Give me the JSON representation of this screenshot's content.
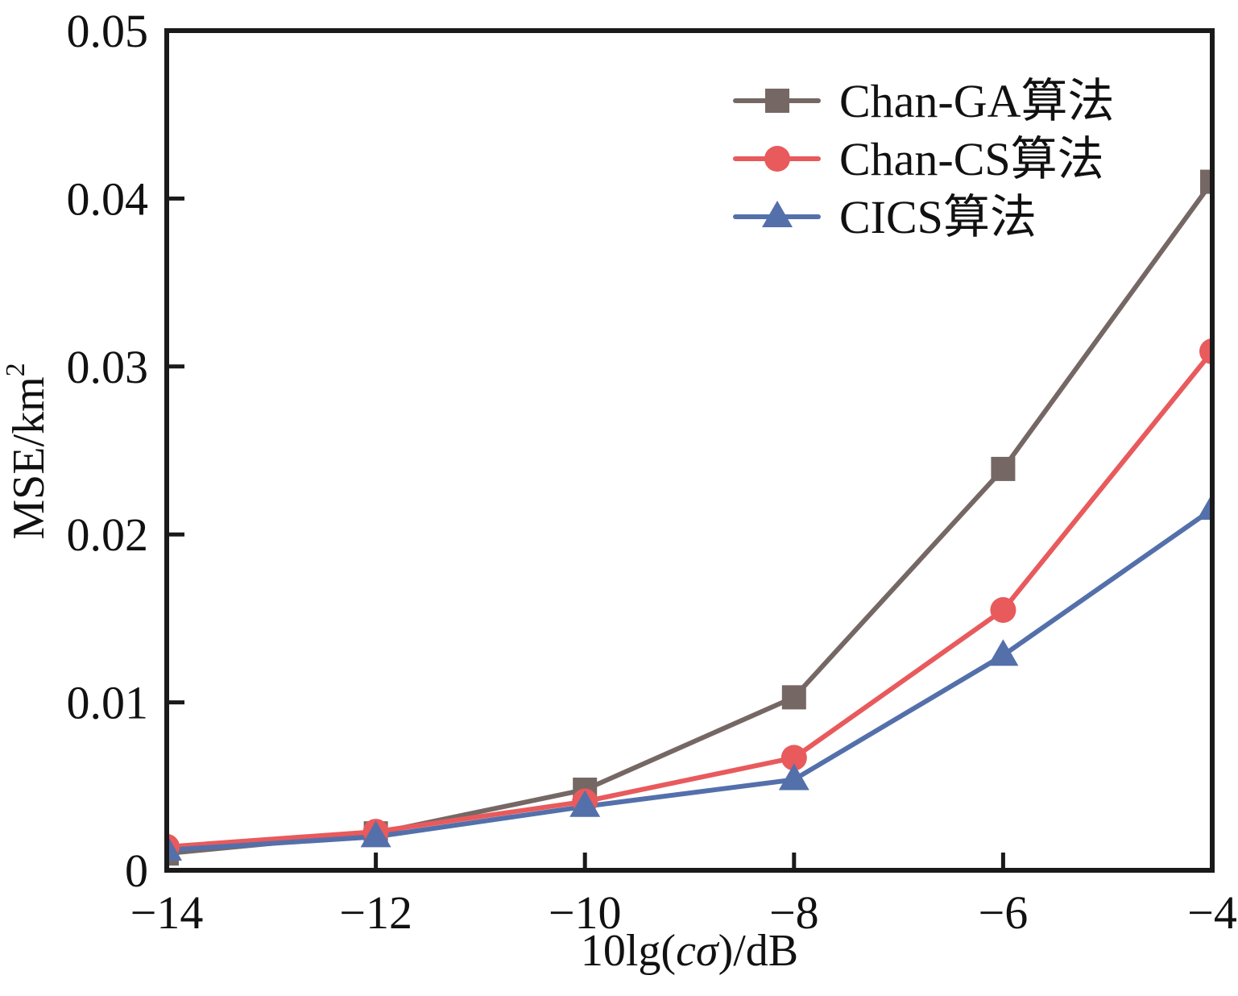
{
  "chart_data": {
    "type": "line",
    "title": "",
    "xlabel": "10lg(cσ)/dB",
    "xlabel_parts": {
      "prefix": "10lg(",
      "italic": "cσ",
      "suffix": ")/dB"
    },
    "ylabel": "MSE/km²",
    "ylabel_parts": {
      "base": "MSE/km",
      "sup": "2"
    },
    "x": [
      -14,
      -12,
      -10,
      -8,
      -6,
      -4
    ],
    "xlim": [
      -14,
      -4
    ],
    "ylim": [
      0,
      0.05
    ],
    "xticks": [
      -14,
      -12,
      -10,
      -8,
      -6,
      -4
    ],
    "xtick_labels": [
      "−14",
      "−12",
      "−10",
      "−8",
      "−6",
      "−4"
    ],
    "yticks": [
      0,
      0.01,
      0.02,
      0.03,
      0.04,
      0.05
    ],
    "ytick_labels": [
      "0",
      "0.01",
      "0.02",
      "0.03",
      "0.04",
      "0.05"
    ],
    "grid": false,
    "legend_position": "top-right",
    "series": [
      {
        "name": "Chan-GA算法",
        "marker": "square",
        "color": "#756864",
        "values": [
          0.001,
          0.0022,
          0.0048,
          0.0103,
          0.0239,
          0.041
        ]
      },
      {
        "name": "Chan-CS算法",
        "marker": "circle",
        "color": "#e85a5c",
        "values": [
          0.0014,
          0.0023,
          0.0041,
          0.0067,
          0.0155,
          0.0309
        ]
      },
      {
        "name": "CICS算法",
        "marker": "triangle",
        "color": "#5470ab",
        "values": [
          0.0012,
          0.002,
          0.0038,
          0.0054,
          0.0128,
          0.0215
        ]
      }
    ]
  }
}
